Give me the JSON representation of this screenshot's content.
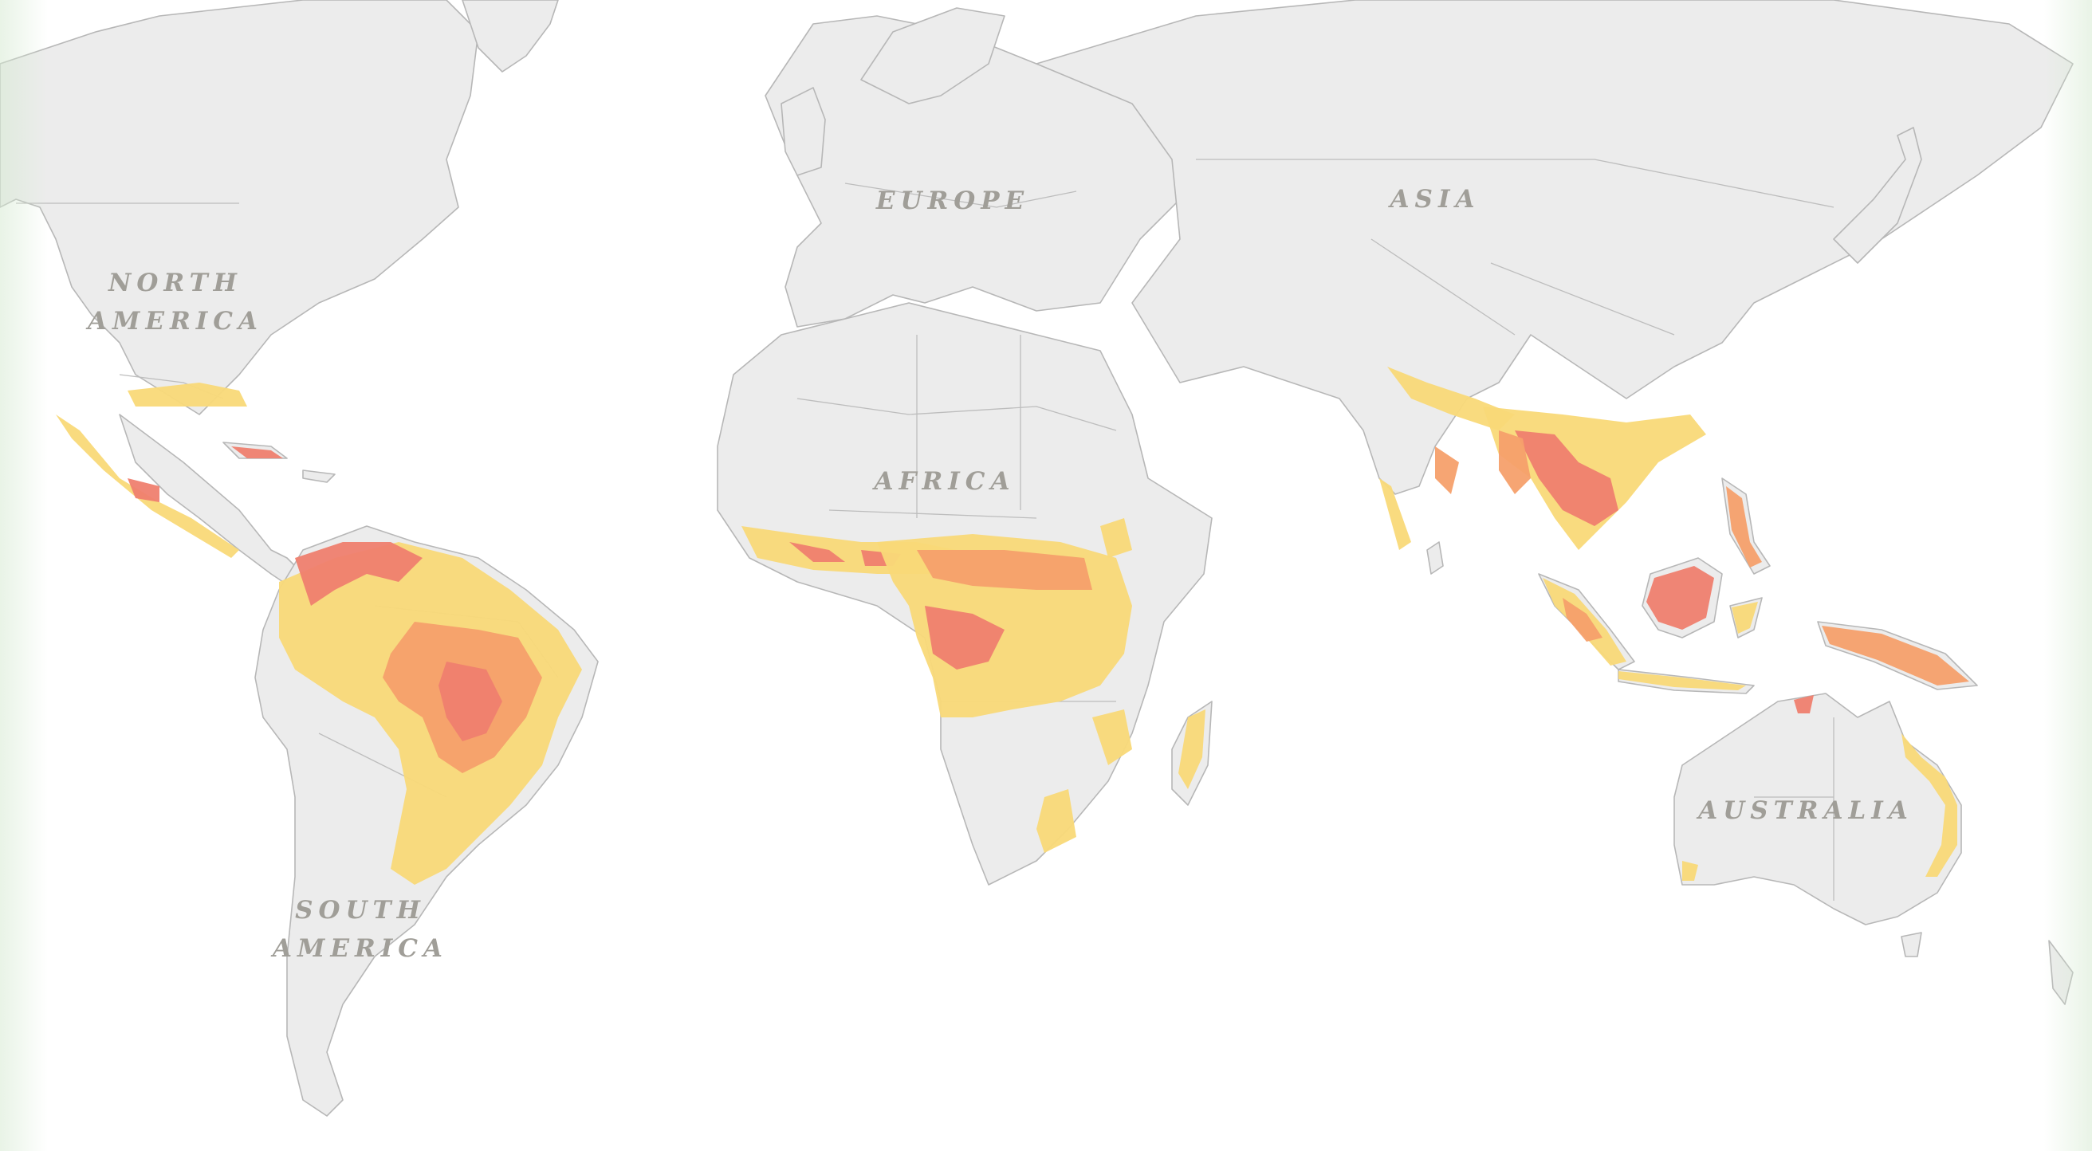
{
  "map": {
    "labels": {
      "north_america_line1": "NORTH",
      "north_america_line2": "AMERICA",
      "europe": "EUROPE",
      "asia": "ASIA",
      "africa": "AFRICA",
      "south_america_line1": "SOUTH",
      "south_america_line2": "AMERICA",
      "australia": "AUSTRALIA"
    },
    "colors": {
      "land": "#ececec",
      "border": "#b7b7b7",
      "loss_low": "#f9d978",
      "loss_mid": "#f5a06b",
      "loss_high": "#ef7f6f"
    }
  }
}
